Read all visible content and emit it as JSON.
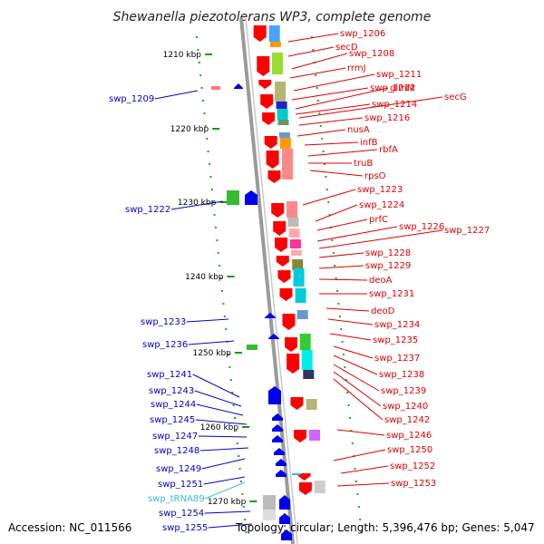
{
  "title": "Shewanella piezotolerans WP3, complete genome",
  "footer": {
    "accession": "Accession: NC_011566",
    "summary": "Topology: circular; Length: 5,396,476 bp; Genes: 5,047"
  },
  "ticks": [
    "1210 kbp",
    "1220 kbp",
    "1230 kbp",
    "1240 kbp",
    "1250 kbp",
    "1260 kbp",
    "1270 kbp"
  ],
  "colors": {
    "forward_label": "#dd0000",
    "reverse_label": "#0000cc",
    "trna_label": "#33bbdd",
    "axis": "#9a9a9a"
  },
  "forward_labels": [
    "swp_1206",
    "secD",
    "swp_1208",
    "rrmJ",
    "swp_1211",
    "swp_1212",
    "glmM",
    "swp_1214",
    "secG",
    "swp_1216",
    "nusA",
    "infB",
    "rbfA",
    "truB",
    "rpsO",
    "swp_1223",
    "swp_1224",
    "prfC",
    "swp_1226",
    "swp_1227",
    "swp_1228",
    "swp_1229",
    "deoA",
    "swp_1231",
    "deoD",
    "swp_1234",
    "swp_1235",
    "swp_1237",
    "swp_1238",
    "swp_1239",
    "swp_1240",
    "swp_1242",
    "swp_1246",
    "swp_1250",
    "swp_1252",
    "swp_1253"
  ],
  "reverse_labels": [
    "swp_1209",
    "swp_1222",
    "swp_1233",
    "swp_1236",
    "swp_1241",
    "swp_1243",
    "swp_1244",
    "swp_1245",
    "swp_1247",
    "swp_1248",
    "swp_1249",
    "swp_1251",
    "swp_tRNA89",
    "swp_1254",
    "swp_1255"
  ]
}
